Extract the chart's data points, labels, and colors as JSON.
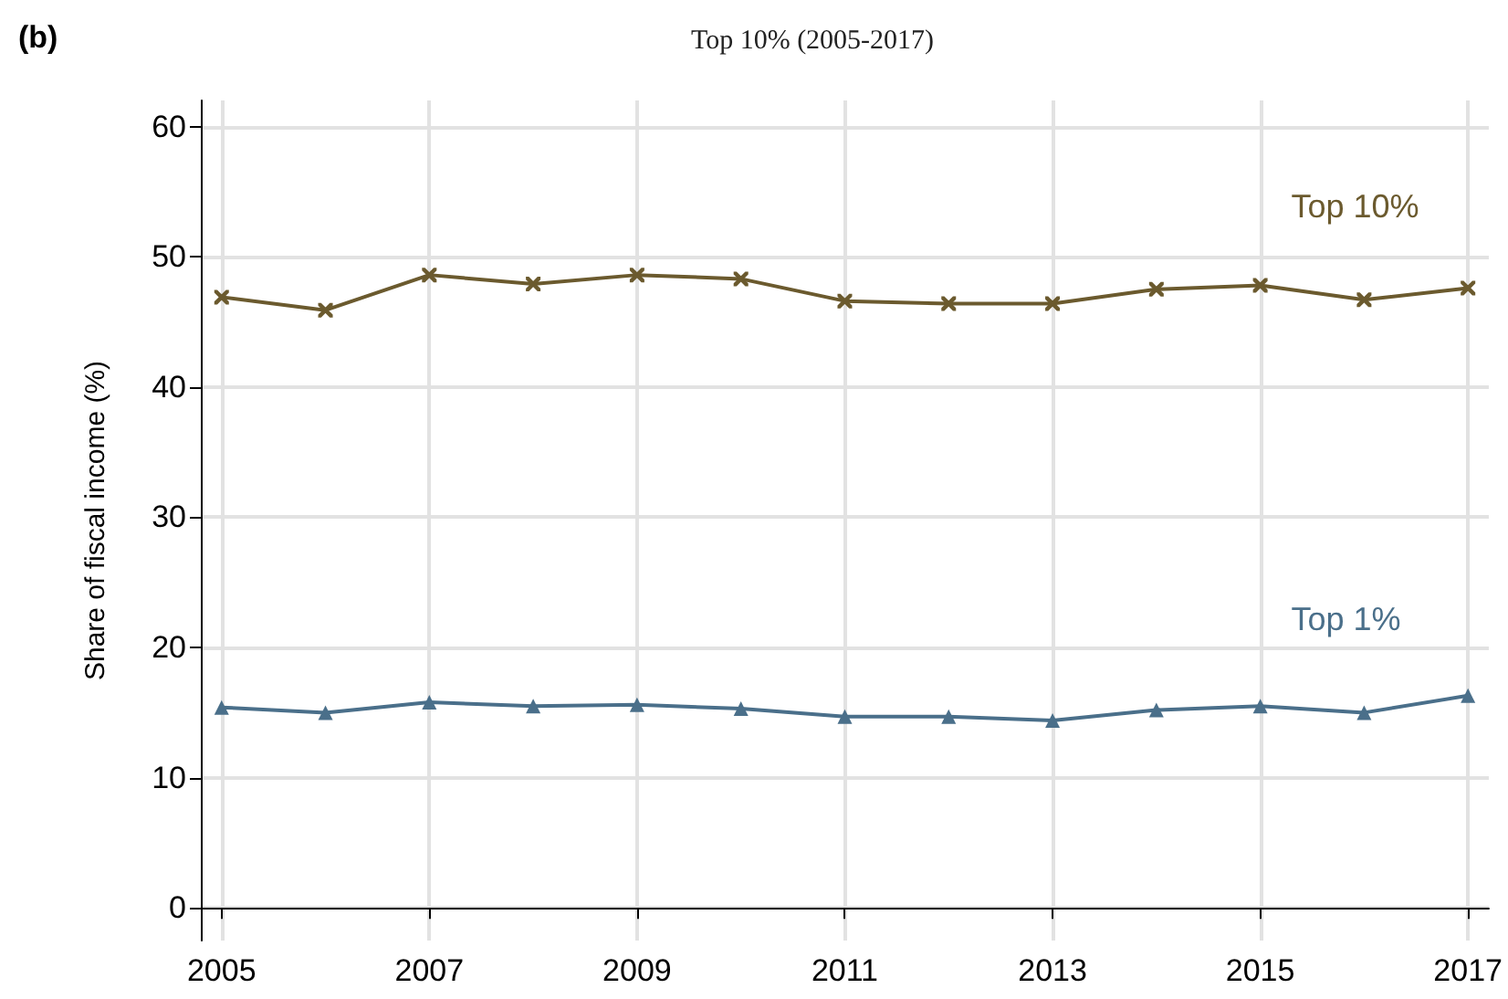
{
  "chart_data": {
    "type": "line",
    "title": "Top 10% (2005-2017)",
    "ylabel": "Share of fiscal income (%)",
    "annotations": [
      "(b)"
    ],
    "x": [
      2005,
      2006,
      2007,
      2008,
      2009,
      2010,
      2011,
      2012,
      2013,
      2014,
      2015,
      2016,
      2017
    ],
    "series": [
      {
        "name": "Top 10%",
        "color": "#6b5a2e",
        "marker": "cross",
        "values": [
          46.9,
          45.9,
          48.6,
          47.9,
          48.6,
          48.3,
          46.6,
          46.4,
          46.4,
          47.5,
          47.8,
          46.7,
          47.6
        ]
      },
      {
        "name": "Top 1%",
        "color": "#4a6f8a",
        "marker": "triangle",
        "values": [
          15.4,
          15.0,
          15.8,
          15.5,
          15.6,
          15.3,
          14.7,
          14.7,
          14.4,
          15.2,
          15.5,
          15.0,
          16.3
        ]
      }
    ],
    "xlim": [
      2004.8,
      2017.2
    ],
    "xticks": [
      2005,
      2007,
      2009,
      2011,
      2013,
      2015,
      2017
    ],
    "ylim": [
      -2.5,
      62
    ],
    "yticks": [
      0,
      10,
      20,
      30,
      40,
      50,
      60
    ],
    "grid": true,
    "legend": false,
    "line_style": "solid"
  }
}
